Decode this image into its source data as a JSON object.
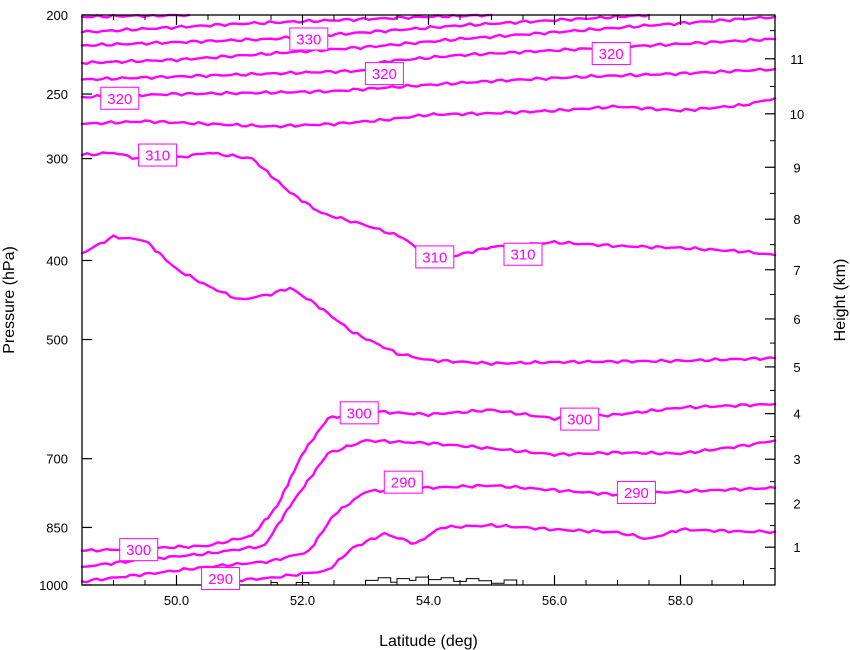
{
  "chart_data": {
    "type": "contour",
    "xlabel": "Latitude (deg)",
    "ylabel_left": "Pressure (hPa)",
    "ylabel_right": "Height (km)",
    "xlim": [
      48.5,
      59.5
    ],
    "ylim_pressure_hPa": [
      1000,
      200
    ],
    "y_scale": "log pressure",
    "line_color": "#ff00ff",
    "x_ticks": [
      50,
      52,
      54,
      56,
      58
    ],
    "x_tick_labels": [
      "50.0",
      "52.0",
      "54.0",
      "56.0",
      "58.0"
    ],
    "pressure_ticks": [
      1000,
      850,
      700,
      500,
      400,
      300,
      250,
      200
    ],
    "pressure_tick_labels": [
      "1000",
      "850",
      "700",
      "500",
      "400",
      "300",
      "250",
      "200"
    ],
    "height_ticks_km": [
      1,
      2,
      3,
      4,
      5,
      6,
      7,
      8,
      9,
      10,
      11
    ],
    "height_tick_labels": [
      "1",
      "2",
      "3",
      "4",
      "5",
      "6",
      "7",
      "8",
      "9",
      "10",
      "11"
    ],
    "contours": [
      {
        "points": [
          [
            48.5,
            201
          ],
          [
            50.2,
            200
          ]
        ]
      },
      {
        "points": [
          [
            48.5,
            210
          ],
          [
            50,
            207
          ],
          [
            51,
            205
          ],
          [
            52.5,
            203
          ],
          [
            54,
            201
          ],
          [
            55,
            200
          ]
        ]
      },
      {
        "points": [
          [
            48.5,
            218
          ],
          [
            50,
            216
          ],
          [
            51.5,
            214
          ],
          [
            53,
            210
          ],
          [
            54.5,
            206
          ],
          [
            56.5,
            202
          ],
          [
            57.5,
            200
          ]
        ]
      },
      {
        "points": [
          [
            48.5,
            229
          ],
          [
            50,
            227
          ],
          [
            51.5,
            223
          ],
          [
            53,
            219
          ],
          [
            54.5,
            214
          ],
          [
            56,
            210
          ],
          [
            57.5,
            206
          ],
          [
            59.5,
            201
          ]
        ]
      },
      {
        "points": [
          [
            48.5,
            240
          ],
          [
            50,
            238
          ],
          [
            51.5,
            236
          ],
          [
            53,
            234
          ],
          [
            53.3,
            228
          ],
          [
            54.5,
            224
          ],
          [
            56,
            221
          ],
          [
            58,
            217
          ],
          [
            59.5,
            214
          ]
        ]
      },
      {
        "points": [
          [
            48.5,
            252
          ],
          [
            50,
            250
          ],
          [
            51.5,
            249
          ],
          [
            52.5,
            248
          ],
          [
            53.5,
            245
          ],
          [
            55,
            241
          ],
          [
            56.5,
            238
          ],
          [
            58,
            236
          ],
          [
            59.5,
            233
          ]
        ]
      },
      {
        "points": [
          [
            48.5,
            272
          ],
          [
            49.5,
            270
          ],
          [
            50.5,
            272
          ],
          [
            51.5,
            274
          ],
          [
            52.5,
            272
          ],
          [
            53.3,
            269
          ],
          [
            54,
            265
          ],
          [
            55,
            264
          ],
          [
            56,
            262
          ],
          [
            57,
            259
          ],
          [
            58,
            262
          ],
          [
            59,
            258
          ],
          [
            59.5,
            253
          ]
        ]
      },
      {
        "points": [
          [
            48.5,
            297
          ],
          [
            49,
            295
          ],
          [
            49.6,
            303
          ],
          [
            50.5,
            295
          ],
          [
            51.2,
            300
          ],
          [
            51.8,
            330
          ],
          [
            52.3,
            350
          ],
          [
            53,
            362
          ],
          [
            53.6,
            375
          ],
          [
            54,
            397
          ],
          [
            54.4,
            395
          ],
          [
            55,
            385
          ],
          [
            56,
            380
          ],
          [
            57,
            384
          ],
          [
            58,
            386
          ],
          [
            59,
            390
          ],
          [
            59.5,
            394
          ]
        ]
      },
      {
        "points": [
          [
            48.5,
            392
          ],
          [
            49,
            374
          ],
          [
            49.5,
            378
          ],
          [
            50,
            410
          ],
          [
            50.5,
            430
          ],
          [
            51,
            447
          ],
          [
            51.5,
            440
          ],
          [
            51.8,
            432
          ],
          [
            52.2,
            452
          ],
          [
            52.8,
            490
          ],
          [
            53.5,
            520
          ],
          [
            54,
            530
          ],
          [
            55,
            535
          ],
          [
            56,
            533
          ],
          [
            57,
            532
          ],
          [
            58,
            531
          ],
          [
            59.5,
            527
          ]
        ]
      },
      {
        "points": [
          [
            48.5,
            908
          ],
          [
            49.5,
            902
          ],
          [
            50.5,
            895
          ],
          [
            51.2,
            870
          ],
          [
            51.6,
            800
          ],
          [
            52,
            690
          ],
          [
            52.4,
            625
          ],
          [
            53,
            612
          ],
          [
            54,
            618
          ],
          [
            55,
            610
          ],
          [
            56,
            625
          ],
          [
            57,
            618
          ],
          [
            58,
            606
          ],
          [
            59.5,
            600
          ]
        ]
      },
      {
        "points": [
          [
            48.5,
            950
          ],
          [
            49.5,
            930
          ],
          [
            50.5,
            915
          ],
          [
            51.4,
            895
          ],
          [
            51.8,
            800
          ],
          [
            52.4,
            690
          ],
          [
            53,
            665
          ],
          [
            54,
            670
          ],
          [
            55,
            680
          ],
          [
            56,
            692
          ],
          [
            57,
            688
          ],
          [
            58,
            690
          ],
          [
            59,
            675
          ],
          [
            59.5,
            665
          ]
        ]
      },
      {
        "points": [
          [
            48.5,
            990
          ],
          [
            49.5,
            970
          ],
          [
            50.5,
            950
          ],
          [
            51.5,
            935
          ],
          [
            52.1,
            910
          ],
          [
            52.5,
            820
          ],
          [
            53,
            768
          ],
          [
            54,
            760
          ],
          [
            55,
            755
          ],
          [
            56,
            765
          ],
          [
            57,
            775
          ],
          [
            58,
            768
          ],
          [
            59.5,
            760
          ]
        ]
      },
      {
        "points": [
          [
            50.5,
            992
          ],
          [
            51.5,
            980
          ],
          [
            52.4,
            960
          ],
          [
            52.8,
            900
          ],
          [
            53.3,
            865
          ],
          [
            53.8,
            890
          ],
          [
            54.2,
            850
          ],
          [
            55,
            845
          ],
          [
            56,
            855
          ],
          [
            57,
            862
          ],
          [
            57.5,
            878
          ],
          [
            58,
            855
          ],
          [
            59,
            860
          ],
          [
            59.5,
            860
          ]
        ]
      }
    ],
    "contour_labels": [
      {
        "text": "330",
        "lat": 52.1,
        "hPa": 214
      },
      {
        "text": "320",
        "lat": 56.9,
        "hPa": 223
      },
      {
        "text": "320",
        "lat": 53.3,
        "hPa": 236
      },
      {
        "text": "320",
        "lat": 49.1,
        "hPa": 253
      },
      {
        "text": "310",
        "lat": 49.7,
        "hPa": 297
      },
      {
        "text": "310",
        "lat": 54.1,
        "hPa": 396
      },
      {
        "text": "310",
        "lat": 55.5,
        "hPa": 393
      },
      {
        "text": "300",
        "lat": 52.9,
        "hPa": 615
      },
      {
        "text": "300",
        "lat": 56.4,
        "hPa": 626
      },
      {
        "text": "290",
        "lat": 53.6,
        "hPa": 748
      },
      {
        "text": "290",
        "lat": 57.3,
        "hPa": 770
      },
      {
        "text": "300",
        "lat": 49.4,
        "hPa": 905
      },
      {
        "text": "290",
        "lat": 50.7,
        "hPa": 982
      }
    ],
    "terrain_profile": [
      [
        51.5,
        1000
      ],
      [
        51.5,
        993
      ],
      [
        51.6,
        993
      ],
      [
        51.6,
        1000
      ],
      [
        51.9,
        1000
      ],
      [
        51.9,
        993
      ],
      [
        52.1,
        993
      ],
      [
        52.1,
        1000
      ],
      [
        53.0,
        1000
      ],
      [
        53.0,
        987
      ],
      [
        53.2,
        987
      ],
      [
        53.2,
        980
      ],
      [
        53.4,
        980
      ],
      [
        53.4,
        992
      ],
      [
        53.5,
        992
      ],
      [
        53.5,
        982
      ],
      [
        53.7,
        982
      ],
      [
        53.7,
        987
      ],
      [
        53.8,
        987
      ],
      [
        53.8,
        978
      ],
      [
        54.0,
        978
      ],
      [
        54.0,
        985
      ],
      [
        54.2,
        985
      ],
      [
        54.2,
        980
      ],
      [
        54.4,
        980
      ],
      [
        54.4,
        990
      ],
      [
        54.6,
        990
      ],
      [
        54.6,
        982
      ],
      [
        54.8,
        982
      ],
      [
        54.8,
        988
      ],
      [
        55.0,
        988
      ],
      [
        55.0,
        995
      ],
      [
        55.2,
        995
      ],
      [
        55.2,
        986
      ],
      [
        55.4,
        986
      ],
      [
        55.4,
        1000
      ]
    ]
  }
}
